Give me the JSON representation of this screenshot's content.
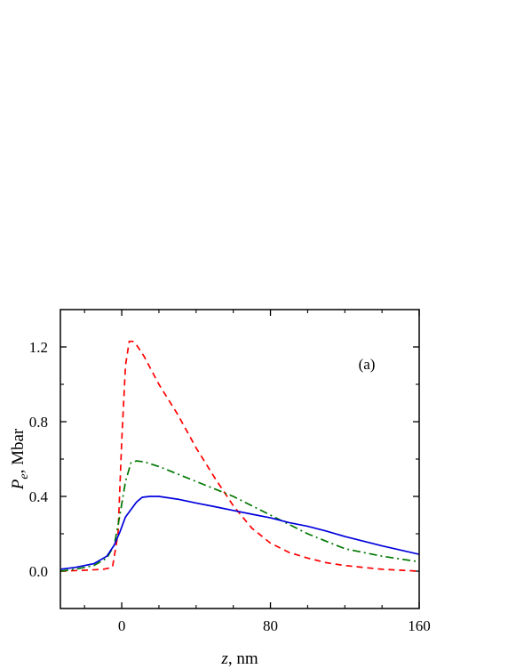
{
  "chart_data": {
    "type": "line",
    "annotation": "(a)",
    "xlabel_var": "z",
    "xlabel_unit": ", nm",
    "ylabel_var": "P",
    "ylabel_sub": "e",
    "ylabel_unit": ", Mbar",
    "xlim": [
      -33,
      160
    ],
    "ylim": [
      -0.2,
      1.4
    ],
    "xticks": [
      0,
      80,
      160
    ],
    "xtick_labels": [
      "0",
      "80",
      "160"
    ],
    "yticks": [
      0.0,
      0.4,
      0.8,
      1.2
    ],
    "ytick_labels": [
      "0.0",
      "0.4",
      "0.8",
      "1.2"
    ],
    "grid": false,
    "series": [
      {
        "color": "#ff0000",
        "dash": "dashed",
        "x": [
          -33,
          -20,
          -10,
          -5,
          -2,
          0,
          2,
          4,
          6,
          8,
          12,
          20,
          30,
          40,
          50,
          60,
          70,
          80,
          90,
          100,
          110,
          120,
          140,
          160
        ],
        "y": [
          0.0,
          0.005,
          0.01,
          0.02,
          0.2,
          0.7,
          1.1,
          1.23,
          1.23,
          1.21,
          1.15,
          1.0,
          0.84,
          0.66,
          0.5,
          0.35,
          0.23,
          0.15,
          0.1,
          0.07,
          0.045,
          0.03,
          0.01,
          0.0
        ]
      },
      {
        "color": "#007700",
        "dash": "dashdot",
        "x": [
          -33,
          -25,
          -15,
          -8,
          -4,
          -1,
          2,
          5,
          8,
          12,
          20,
          30,
          40,
          50,
          60,
          70,
          80,
          90,
          100,
          110,
          120,
          140,
          160
        ],
        "y": [
          0.0,
          0.01,
          0.03,
          0.07,
          0.14,
          0.3,
          0.48,
          0.58,
          0.59,
          0.585,
          0.56,
          0.52,
          0.48,
          0.44,
          0.4,
          0.35,
          0.3,
          0.25,
          0.2,
          0.16,
          0.12,
          0.08,
          0.05
        ]
      },
      {
        "color": "#0000dd",
        "dash": "solid",
        "x": [
          -33,
          -25,
          -15,
          -8,
          -4,
          -1,
          2,
          5,
          8,
          11,
          15,
          20,
          30,
          40,
          50,
          60,
          70,
          80,
          90,
          100,
          110,
          120,
          140,
          160
        ],
        "y": [
          0.01,
          0.02,
          0.04,
          0.08,
          0.14,
          0.21,
          0.29,
          0.33,
          0.37,
          0.395,
          0.4,
          0.4,
          0.385,
          0.365,
          0.345,
          0.325,
          0.305,
          0.285,
          0.26,
          0.24,
          0.215,
          0.185,
          0.135,
          0.09
        ]
      }
    ]
  }
}
